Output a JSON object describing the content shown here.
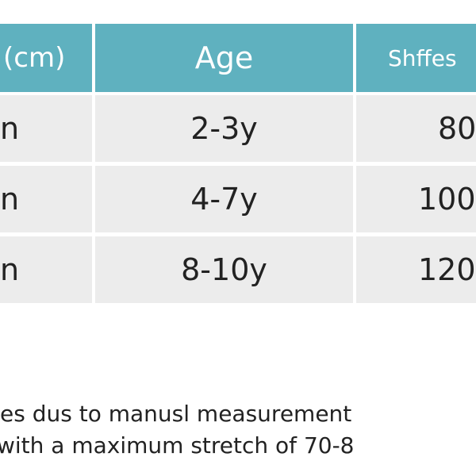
{
  "table": {
    "header": [
      "(cm)",
      "Age",
      "Shffes"
    ],
    "rows": [
      [
        "n",
        "2-3y",
        "80"
      ],
      [
        "n",
        "4-7y",
        "100"
      ],
      [
        "n",
        "8-10y",
        "120"
      ]
    ]
  },
  "notes": [
    "es dus to manusl measurement",
    "with a maximum stretch of 70-8"
  ]
}
